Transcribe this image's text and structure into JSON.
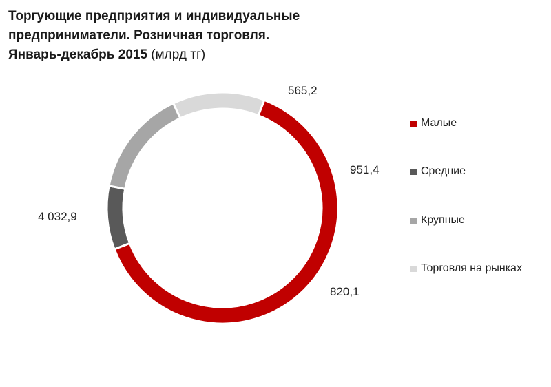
{
  "title": {
    "line1": "Торгующие предприятия и индивидуальные",
    "line2": "предприниматели. Розничная торговля.",
    "line3": "Январь-декабрь 2015",
    "unit": "(млрд тг)"
  },
  "chart_data": {
    "type": "pie",
    "variant": "doughnut",
    "categories": [
      "Малые",
      "Средние",
      "Крупные",
      "Торговля на рынках"
    ],
    "values": [
      4032.9,
      565.2,
      951.4,
      820.1
    ],
    "value_labels": [
      "4 032,9",
      "565,2",
      "951,4",
      "820,1"
    ],
    "colors": [
      "#c00000",
      "#595959",
      "#a6a6a6",
      "#d9d9d9"
    ],
    "legend_position": "right"
  }
}
